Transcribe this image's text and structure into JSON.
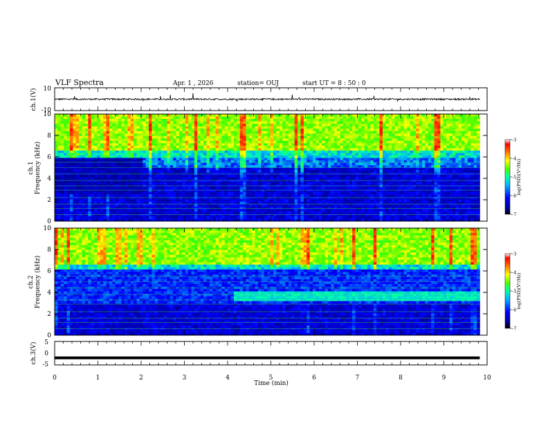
{
  "header": {
    "title": "VLF Spectra",
    "date": "Apr. 1 , 2026",
    "station": "station= OUJ",
    "start": "start UT =  8 : 50 : 0"
  },
  "chart_data": [
    {
      "type": "line",
      "panel": "ch1-waveform",
      "ylabel": "ch.1(V)",
      "ytick_labels": [
        "10",
        "-10"
      ],
      "ylim": [
        -10,
        10
      ],
      "xlim": [
        0,
        10
      ],
      "x_range_data": [
        0,
        9.83
      ],
      "description_values": "noisy waveform centered near 0 V with brief spikes",
      "baseline": 0,
      "noise_amplitude": 1.5
    },
    {
      "type": "heatmap",
      "panel": "ch1-spectrogram",
      "ylabel": "ch.1\nFrequency (kHz)",
      "ylabel_line1": "ch.1",
      "ylabel_line2": "Frequency  (kHz)",
      "ytick_labels": [
        "0",
        "2",
        "4",
        "6",
        "8",
        "10"
      ],
      "yticks": [
        0,
        2,
        4,
        6,
        8,
        10
      ],
      "ylim": [
        0,
        10
      ],
      "xlim": [
        0,
        10
      ],
      "x_range_data": [
        0,
        9.83
      ],
      "colorbar": {
        "label": "log(PSD)(V²/Hz)",
        "ticks": [
          "-3",
          "-4",
          "-5",
          "-6",
          "-7"
        ],
        "range": [
          -7,
          -3
        ]
      }
    },
    {
      "type": "heatmap",
      "panel": "ch2-spectrogram",
      "ylabel_line1": "ch.2",
      "ylabel_line2": "Frequency  (kHz)",
      "ytick_labels": [
        "0",
        "2",
        "4",
        "6",
        "8",
        "10"
      ],
      "yticks": [
        0,
        2,
        4,
        6,
        8,
        10
      ],
      "ylim": [
        0,
        10
      ],
      "xlim": [
        0,
        10
      ],
      "x_range_data": [
        0,
        9.83
      ],
      "colorbar": {
        "label": "log(PSD)(V²/Hz)",
        "ticks": [
          "-3",
          "-4",
          "-5",
          "-6",
          "-7"
        ],
        "range": [
          -7,
          -3
        ]
      }
    },
    {
      "type": "line",
      "panel": "ch3-waveform",
      "ylabel": "ch.3(V)",
      "ytick_labels": [
        "5",
        "0",
        "-5"
      ],
      "ylim": [
        -5,
        5
      ],
      "xlim": [
        0,
        10
      ],
      "x_range_data": [
        0,
        9.83
      ],
      "baseline": -2
    }
  ],
  "xaxis": {
    "label": "Time  (min)",
    "tick_labels": [
      "0",
      "1",
      "2",
      "3",
      "4",
      "5",
      "6",
      "7",
      "8",
      "9",
      "10"
    ]
  },
  "colors": {
    "colormap": [
      "#000088",
      "#0000ff",
      "#0080ff",
      "#00ffff",
      "#00ff80",
      "#80ff00",
      "#ffff00",
      "#ff8000",
      "#ff0000",
      "#ffffff"
    ]
  }
}
